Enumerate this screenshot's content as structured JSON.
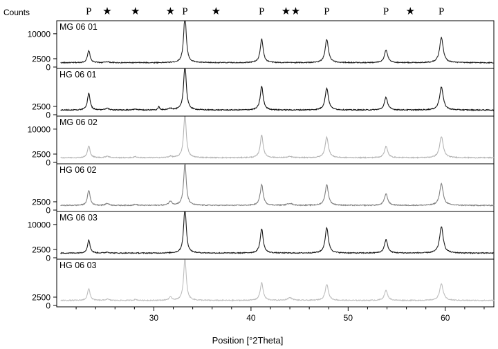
{
  "chart_data": {
    "type": "line",
    "xlabel": "Position [°2Theta]",
    "ylabel": "Counts",
    "xlim": [
      20,
      65
    ],
    "x_ticks": [
      30,
      40,
      50,
      60
    ],
    "x_tick_labels": [
      "30",
      "40",
      "50",
      "60"
    ],
    "grid": false,
    "legend": "none",
    "markers": [
      {
        "label": "P",
        "x": 23.3
      },
      {
        "label": "★",
        "x": 25.2
      },
      {
        "label": "★",
        "x": 28.1
      },
      {
        "label": "★",
        "x": 31.7
      },
      {
        "label": "P",
        "x": 33.2
      },
      {
        "label": "★",
        "x": 36.4
      },
      {
        "label": "P",
        "x": 41.1
      },
      {
        "label": "★",
        "x": 43.6
      },
      {
        "label": "★",
        "x": 44.6
      },
      {
        "label": "P",
        "x": 47.8
      },
      {
        "label": "P",
        "x": 53.9
      },
      {
        "label": "★",
        "x": 56.4
      },
      {
        "label": "P",
        "x": 59.6
      }
    ],
    "series": [
      {
        "name": "MG 06 01",
        "color": "#222222",
        "y_ticks": [
          0,
          2500,
          10000
        ],
        "y_tick_labels": [
          "0",
          "2500",
          "10000"
        ],
        "ylim": [
          0,
          13500
        ],
        "baseline": 1300,
        "peaks": [
          {
            "x": 23.3,
            "height": 3600,
            "width": 0.16
          },
          {
            "x": 25.2,
            "height": 300,
            "width": 0.2
          },
          {
            "x": 33.2,
            "height": 14500,
            "width": 0.16
          },
          {
            "x": 41.1,
            "height": 7100,
            "width": 0.18
          },
          {
            "x": 47.8,
            "height": 7000,
            "width": 0.2
          },
          {
            "x": 53.9,
            "height": 3800,
            "width": 0.2
          },
          {
            "x": 59.6,
            "height": 7600,
            "width": 0.22
          }
        ]
      },
      {
        "name": "HG 06 01",
        "color": "#111111",
        "y_ticks": [
          0,
          2500
        ],
        "y_tick_labels": [
          "0",
          "2500"
        ],
        "ylim": [
          0,
          13500
        ],
        "baseline": 1400,
        "peaks": [
          {
            "x": 23.3,
            "height": 5100,
            "width": 0.16
          },
          {
            "x": 25.2,
            "height": 500,
            "width": 0.2
          },
          {
            "x": 28.1,
            "height": 300,
            "width": 0.2
          },
          {
            "x": 30.5,
            "height": 1000,
            "width": 0.1
          },
          {
            "x": 31.7,
            "height": 500,
            "width": 0.2
          },
          {
            "x": 33.2,
            "height": 14000,
            "width": 0.16
          },
          {
            "x": 41.1,
            "height": 7100,
            "width": 0.18
          },
          {
            "x": 47.8,
            "height": 6600,
            "width": 0.2
          },
          {
            "x": 53.9,
            "height": 3800,
            "width": 0.2
          },
          {
            "x": 59.6,
            "height": 7000,
            "width": 0.22
          }
        ]
      },
      {
        "name": "MG 06 02",
        "color": "#b4b4b4",
        "y_ticks": [
          0,
          2500,
          10000
        ],
        "y_tick_labels": [
          "0",
          "2500",
          "10000"
        ],
        "ylim": [
          0,
          13500
        ],
        "baseline": 1400,
        "peaks": [
          {
            "x": 23.3,
            "height": 3500,
            "width": 0.16
          },
          {
            "x": 25.2,
            "height": 500,
            "width": 0.2
          },
          {
            "x": 28.1,
            "height": 300,
            "width": 0.2
          },
          {
            "x": 31.7,
            "height": 400,
            "width": 0.2
          },
          {
            "x": 33.2,
            "height": 13400,
            "width": 0.16
          },
          {
            "x": 41.1,
            "height": 6800,
            "width": 0.18
          },
          {
            "x": 44.0,
            "height": 300,
            "width": 0.3
          },
          {
            "x": 47.8,
            "height": 6200,
            "width": 0.2
          },
          {
            "x": 53.9,
            "height": 3400,
            "width": 0.2
          },
          {
            "x": 59.6,
            "height": 6400,
            "width": 0.22
          }
        ]
      },
      {
        "name": "HG 06 02",
        "color": "#808080",
        "y_ticks": [
          0,
          2500
        ],
        "y_tick_labels": [
          "0",
          "2500"
        ],
        "ylim": [
          0,
          13500
        ],
        "baseline": 1400,
        "peaks": [
          {
            "x": 23.3,
            "height": 4600,
            "width": 0.16
          },
          {
            "x": 25.2,
            "height": 600,
            "width": 0.2
          },
          {
            "x": 28.1,
            "height": 300,
            "width": 0.2
          },
          {
            "x": 31.7,
            "height": 1200,
            "width": 0.2
          },
          {
            "x": 33.2,
            "height": 12900,
            "width": 0.16
          },
          {
            "x": 41.1,
            "height": 6300,
            "width": 0.18
          },
          {
            "x": 44.0,
            "height": 600,
            "width": 0.3
          },
          {
            "x": 47.8,
            "height": 6200,
            "width": 0.2
          },
          {
            "x": 53.9,
            "height": 3500,
            "width": 0.2
          },
          {
            "x": 59.6,
            "height": 6500,
            "width": 0.22
          }
        ]
      },
      {
        "name": "MG 06 03",
        "color": "#1a1a1a",
        "y_ticks": [
          0,
          2500,
          10000
        ],
        "y_tick_labels": [
          "0",
          "2500",
          "10000"
        ],
        "ylim": [
          0,
          13500
        ],
        "baseline": 1400,
        "peaks": [
          {
            "x": 23.3,
            "height": 3900,
            "width": 0.16
          },
          {
            "x": 25.2,
            "height": 300,
            "width": 0.2
          },
          {
            "x": 33.2,
            "height": 13900,
            "width": 0.16
          },
          {
            "x": 41.1,
            "height": 7300,
            "width": 0.18
          },
          {
            "x": 47.8,
            "height": 7600,
            "width": 0.2
          },
          {
            "x": 53.9,
            "height": 4000,
            "width": 0.2
          },
          {
            "x": 59.6,
            "height": 8000,
            "width": 0.22
          }
        ]
      },
      {
        "name": "HG 06 03",
        "color": "#bebebe",
        "y_ticks": [
          0,
          2500
        ],
        "y_tick_labels": [
          "0",
          "2500"
        ],
        "ylim": [
          0,
          13500
        ],
        "baseline": 1500,
        "peaks": [
          {
            "x": 23.3,
            "height": 3500,
            "width": 0.16
          },
          {
            "x": 25.2,
            "height": 400,
            "width": 0.2
          },
          {
            "x": 28.1,
            "height": 300,
            "width": 0.2
          },
          {
            "x": 31.7,
            "height": 900,
            "width": 0.2
          },
          {
            "x": 33.2,
            "height": 12900,
            "width": 0.16
          },
          {
            "x": 41.1,
            "height": 5300,
            "width": 0.18
          },
          {
            "x": 44.0,
            "height": 800,
            "width": 0.3
          },
          {
            "x": 47.8,
            "height": 4800,
            "width": 0.2
          },
          {
            "x": 53.9,
            "height": 3000,
            "width": 0.2
          },
          {
            "x": 59.6,
            "height": 5000,
            "width": 0.22
          }
        ]
      }
    ]
  }
}
